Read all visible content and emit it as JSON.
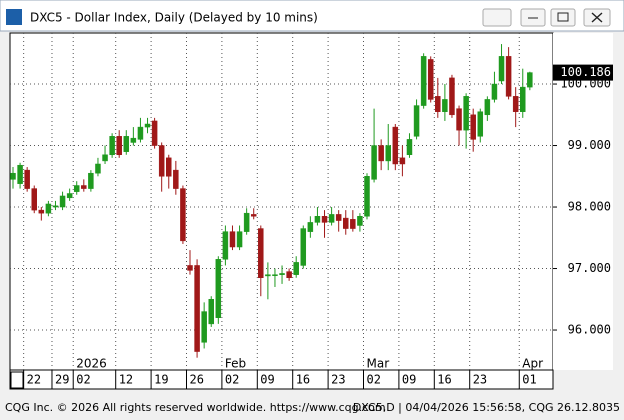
{
  "window": {
    "title": "DXC5 - Dollar Index, Daily (Delayed by 10 mins)"
  },
  "status_bar": {
    "left": "CQG Inc. © 2026 All rights reserved worldwide. https://www.cqg.com",
    "right": "DXC5,D | 04/04/2026 15:56:58, CQG 26.12.8035"
  },
  "chart_data": {
    "type": "candlestick",
    "categories": [
      null,
      null,
      "22",
      null,
      null,
      null,
      "29",
      null,
      null,
      "02",
      null,
      null,
      null,
      null,
      null,
      "12",
      null,
      null,
      null,
      null,
      "19",
      null,
      null,
      null,
      null,
      "26",
      null,
      null,
      null,
      null,
      "02",
      null,
      null,
      null,
      null,
      "09",
      null,
      null,
      null,
      null,
      "16",
      null,
      null,
      null,
      null,
      "23",
      null,
      null,
      null,
      null,
      "02",
      null,
      null,
      null,
      null,
      "09",
      null,
      null,
      null,
      null,
      "16",
      null,
      null,
      null,
      null,
      "23",
      null,
      null,
      null,
      null,
      null,
      null,
      "01",
      null
    ],
    "period_labels": [
      null,
      null,
      null,
      null,
      null,
      null,
      null,
      null,
      null,
      "2026",
      null,
      null,
      null,
      null,
      null,
      null,
      null,
      null,
      null,
      null,
      null,
      null,
      null,
      null,
      null,
      null,
      null,
      null,
      null,
      null,
      "Feb",
      null,
      null,
      null,
      null,
      null,
      null,
      null,
      null,
      null,
      null,
      null,
      null,
      null,
      null,
      null,
      null,
      null,
      null,
      null,
      "Mar",
      null,
      null,
      null,
      null,
      null,
      null,
      null,
      null,
      null,
      null,
      null,
      null,
      null,
      null,
      null,
      null,
      null,
      null,
      null,
      null,
      null,
      "Apr",
      null
    ],
    "open": [
      98.45,
      98.38,
      98.6,
      98.3,
      97.95,
      97.9,
      98.0,
      98.0,
      98.15,
      98.25,
      98.35,
      98.3,
      98.55,
      98.75,
      98.85,
      99.15,
      98.9,
      99.05,
      99.1,
      99.3,
      99.4,
      99.0,
      98.8,
      98.6,
      98.3,
      97.05,
      97.05,
      95.8,
      96.1,
      96.2,
      97.15,
      97.6,
      97.35,
      97.6,
      97.88,
      97.65,
      96.88,
      96.9,
      96.9,
      96.95,
      96.9,
      97.05,
      97.6,
      97.75,
      97.85,
      97.75,
      97.88,
      97.82,
      97.8,
      97.7,
      97.85,
      98.45,
      99.0,
      98.75,
      99.3,
      98.8,
      98.85,
      99.15,
      99.65,
      100.4,
      99.8,
      99.55,
      100.1,
      99.6,
      99.25,
      99.5,
      99.15,
      99.5,
      99.75,
      100.05,
      100.45,
      99.8,
      99.55,
      99.95
    ],
    "high": [
      98.65,
      98.72,
      98.65,
      98.35,
      98.0,
      98.1,
      98.1,
      98.25,
      98.3,
      98.42,
      98.45,
      98.6,
      98.8,
      99.0,
      99.2,
      99.25,
      99.25,
      99.3,
      99.45,
      99.45,
      99.45,
      99.05,
      98.85,
      98.75,
      98.35,
      97.3,
      97.15,
      96.45,
      96.55,
      97.2,
      97.7,
      97.7,
      97.7,
      97.98,
      97.98,
      97.7,
      97.1,
      97.0,
      97.05,
      97.0,
      97.2,
      97.7,
      97.85,
      98.0,
      97.95,
      98.0,
      97.95,
      97.95,
      97.95,
      97.9,
      98.55,
      99.6,
      99.1,
      99.35,
      99.35,
      99.0,
      99.2,
      99.75,
      100.5,
      100.45,
      100.1,
      100.0,
      100.15,
      99.65,
      99.85,
      99.6,
      99.6,
      99.8,
      100.2,
      100.65,
      100.6,
      99.95,
      100.25,
      100.2
    ],
    "low": [
      98.3,
      98.3,
      98.25,
      97.9,
      97.78,
      97.85,
      97.95,
      97.95,
      98.1,
      98.2,
      98.25,
      98.25,
      98.5,
      98.7,
      98.8,
      98.8,
      98.85,
      99.0,
      99.05,
      99.2,
      98.95,
      98.25,
      98.3,
      98.2,
      97.4,
      96.9,
      95.55,
      95.7,
      96.05,
      96.1,
      97.05,
      97.3,
      97.3,
      97.55,
      97.8,
      96.55,
      96.5,
      96.7,
      96.75,
      96.8,
      96.85,
      97.0,
      97.5,
      97.7,
      97.5,
      97.7,
      97.6,
      97.55,
      97.6,
      97.6,
      97.8,
      98.4,
      98.6,
      98.6,
      98.6,
      98.5,
      98.8,
      99.1,
      99.6,
      99.7,
      99.45,
      99.4,
      99.45,
      99.0,
      98.95,
      98.9,
      99.05,
      99.4,
      99.7,
      100.0,
      99.75,
      99.3,
      99.45,
      99.9
    ],
    "close": [
      98.55,
      98.68,
      98.3,
      97.95,
      97.9,
      98.05,
      98.02,
      98.18,
      98.22,
      98.35,
      98.3,
      98.55,
      98.7,
      98.85,
      99.15,
      98.85,
      99.15,
      99.12,
      99.3,
      99.35,
      99.0,
      98.5,
      98.5,
      98.3,
      97.45,
      96.97,
      95.65,
      96.3,
      96.5,
      97.15,
      97.6,
      97.35,
      97.6,
      97.9,
      97.85,
      96.85,
      96.9,
      96.9,
      96.92,
      96.85,
      97.1,
      97.65,
      97.75,
      97.85,
      97.75,
      97.88,
      97.78,
      97.65,
      97.65,
      97.85,
      98.5,
      99.0,
      98.75,
      99.0,
      98.7,
      98.7,
      99.1,
      99.65,
      100.45,
      99.75,
      99.55,
      99.75,
      99.5,
      99.25,
      99.8,
      99.1,
      99.55,
      99.75,
      100.0,
      100.45,
      99.8,
      99.55,
      99.95,
      100.186
    ],
    "up_color": "#1f9a1f",
    "down_color": "#a01818",
    "ylim": [
      95.35,
      100.83
    ],
    "yticks": [
      {
        "value": 96,
        "label": "96.000"
      },
      {
        "value": 97,
        "label": "97.000"
      },
      {
        "value": 98,
        "label": "98.000"
      },
      {
        "value": 99,
        "label": "99.000"
      },
      {
        "value": 100,
        "label": "100.000"
      }
    ],
    "grid": true
  }
}
